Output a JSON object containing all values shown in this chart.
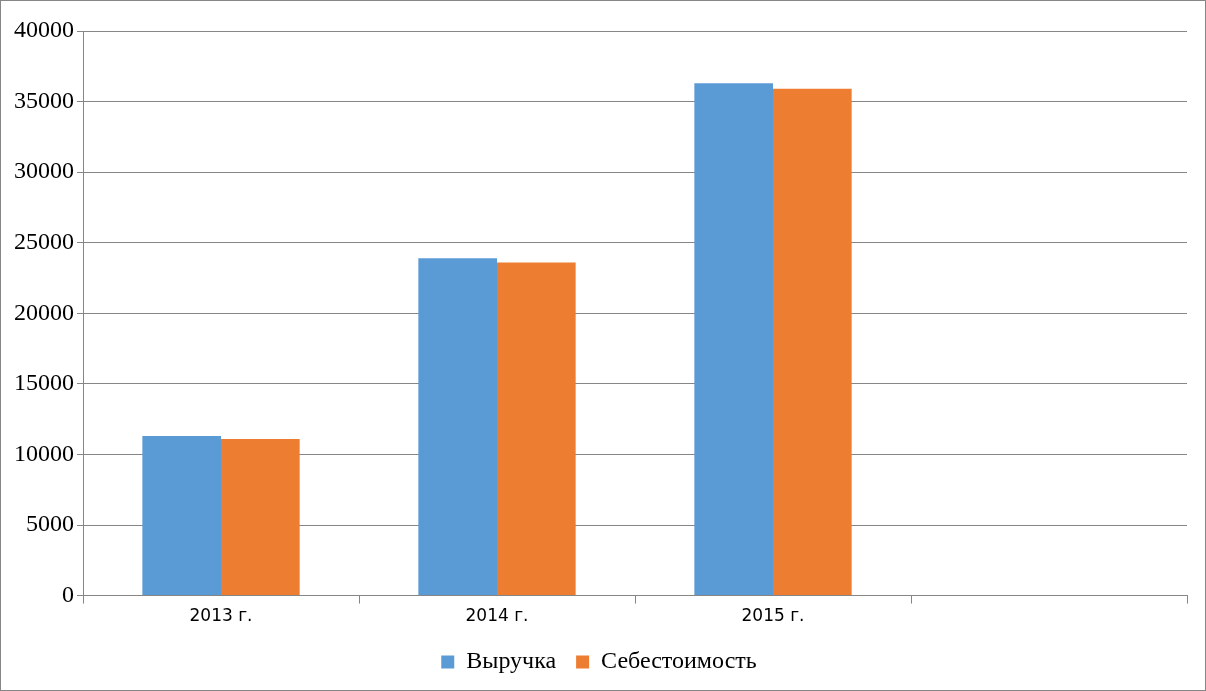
{
  "chart_data": {
    "type": "bar",
    "categories": [
      "2013 г.",
      "2014 г.",
      "2015 г.",
      null
    ],
    "series": [
      {
        "name": "Выручка",
        "color": "#5b9bd5",
        "values": [
          11300,
          23900,
          36300,
          null
        ]
      },
      {
        "name": "Себестоимость",
        "color": "#ed7d31",
        "values": [
          11100,
          23600,
          35900,
          null
        ]
      }
    ],
    "ylim": [
      0,
      40000
    ],
    "yticks": [
      0,
      5000,
      10000,
      15000,
      20000,
      25000,
      30000,
      35000,
      40000
    ],
    "grid": "y",
    "legend": "bottom"
  }
}
